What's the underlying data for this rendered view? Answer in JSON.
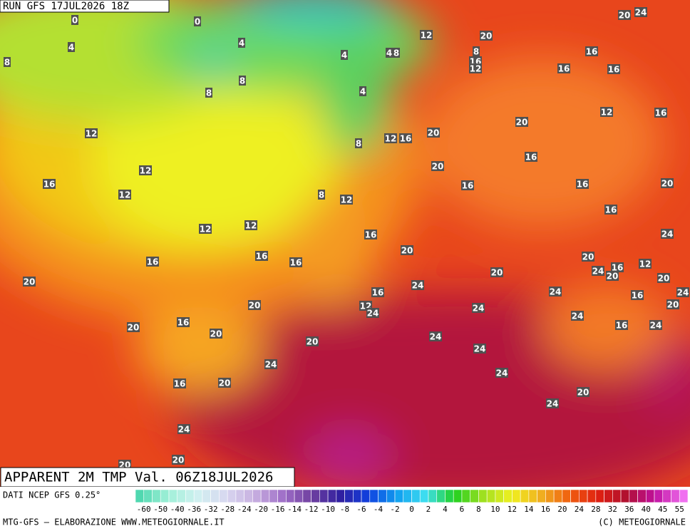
{
  "header": {
    "run": "RUN GFS 17JUL2026 18Z",
    "title": "APPARENT 2M TMP Val. 06Z18JUL2026"
  },
  "map_labels": [
    0,
    0,
    4,
    4,
    4,
    4,
    8,
    8,
    8,
    8,
    4,
    12,
    20,
    20,
    24,
    8,
    16,
    12,
    16,
    16,
    16,
    12,
    16,
    20,
    12,
    12,
    16,
    20,
    8,
    16,
    12,
    20,
    16,
    12,
    8,
    12,
    16,
    16,
    20,
    16,
    12,
    12,
    16,
    24,
    20,
    16,
    16,
    16,
    20,
    24,
    16,
    12,
    20,
    20,
    20,
    20,
    24,
    24,
    16,
    16,
    24,
    12,
    24,
    20,
    20,
    24,
    24,
    16,
    16,
    24,
    20,
    20,
    24,
    20,
    24,
    24,
    24,
    16,
    20,
    20,
    24,
    24,
    20,
    20
  ],
  "legend": {
    "source": "DATI NCEP GFS 0.25°",
    "ticks": [
      -60,
      -50,
      -40,
      -36,
      -32,
      -28,
      -24,
      -20,
      -16,
      -14,
      -12,
      -10,
      -8,
      -6,
      -4,
      -2,
      0,
      2,
      4,
      6,
      8,
      10,
      12,
      14,
      16,
      20,
      24,
      28,
      32,
      36,
      40,
      45,
      55
    ]
  },
  "footer": {
    "left": "MTG-GFS — ELABORAZIONE WWW.METEOGIORNALE.IT",
    "right": "(C) METEOGIORNALE"
  }
}
